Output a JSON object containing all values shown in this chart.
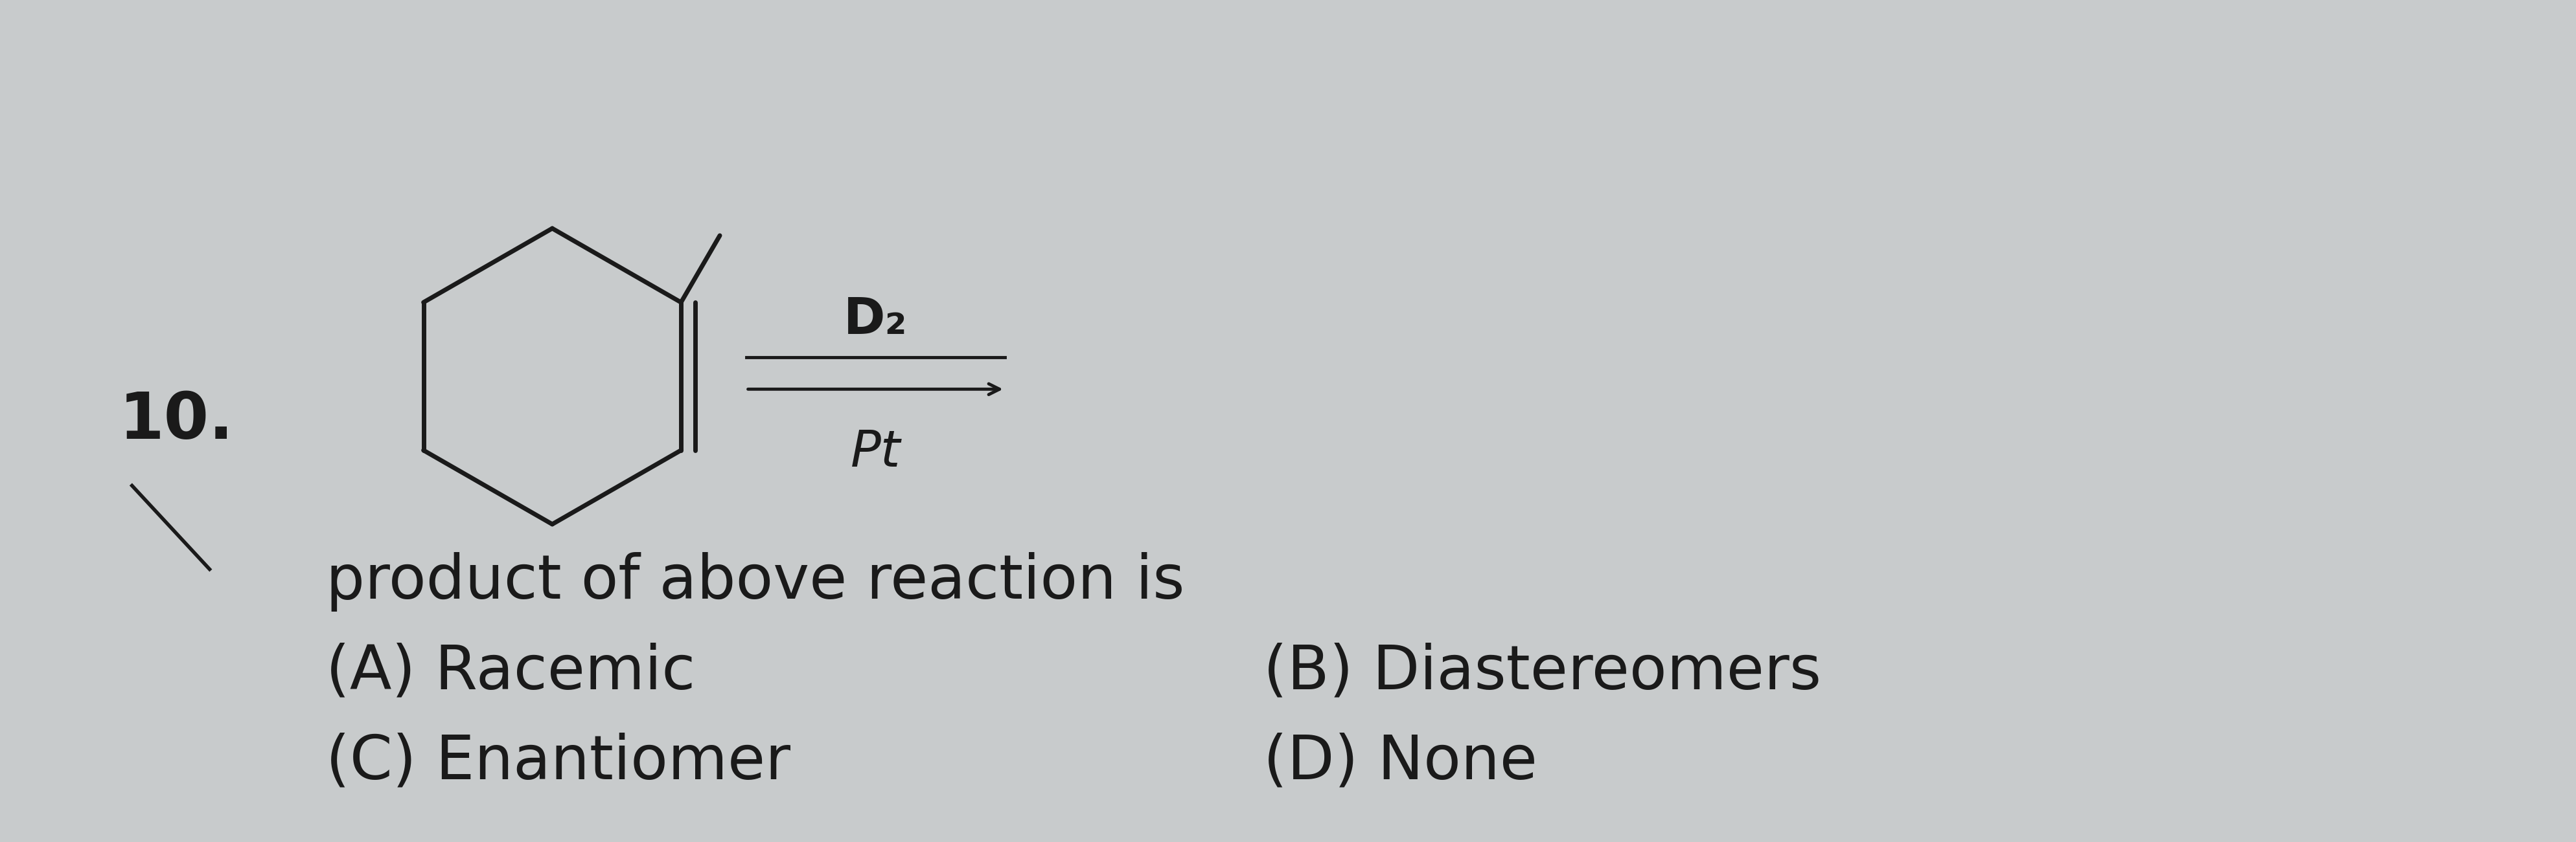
{
  "background_color": "#c8cbcc",
  "question_number": "10.",
  "question_text": "product of above reaction is",
  "options": [
    {
      "label": "(A)",
      "text": "Racemic"
    },
    {
      "label": "(B)",
      "text": "Diastereomers"
    },
    {
      "label": "(C)",
      "text": "Enantiomer"
    },
    {
      "label": "(D)",
      "text": "None"
    }
  ],
  "reagent_above": "D₂",
  "reagent_below": "Pt",
  "text_color": "#1a1a1a",
  "font_size_question": 68,
  "font_size_options": 68,
  "font_size_number": 72,
  "font_size_reagent": 56
}
